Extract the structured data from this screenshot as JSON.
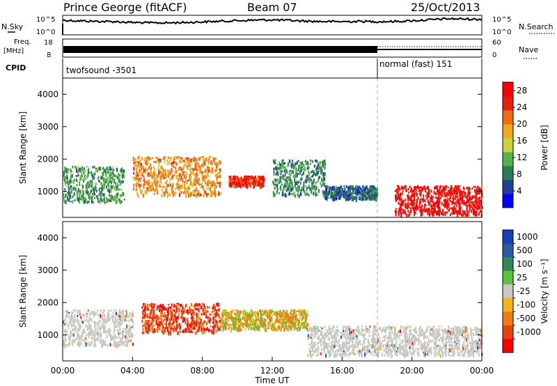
{
  "header": {
    "station": "Prince George (fitACF)",
    "beam": "Beam 07",
    "date": "25/Oct/2013"
  },
  "noise_panel": {
    "left_label": "N.Sky",
    "right_label": "N.Search",
    "left_ticks": [
      "10^5",
      "10^0"
    ],
    "right_ticks": [
      "10^5",
      "10^0"
    ]
  },
  "freq_panel": {
    "left_label_1": "Freq.",
    "left_label_2": "[MHz]",
    "left_ticks": [
      "18",
      "8"
    ],
    "right_label": "Nave",
    "right_ticks": [
      "60",
      "0"
    ]
  },
  "cpid": {
    "label": "CPID",
    "segments": [
      {
        "name": "twofsound -3501",
        "start_hour": 0,
        "end_hour": 18
      },
      {
        "name": "normal (fast) 151",
        "start_hour": 18,
        "end_hour": 24
      }
    ]
  },
  "colors": {
    "power_scale": [
      "#0000ff",
      "#1e3f9a",
      "#2f7a56",
      "#53b24a",
      "#c8d23a",
      "#f3a81c",
      "#f26a12",
      "#e81f0a",
      "#ff0000"
    ],
    "velocity_scale": [
      "#1a3dbd",
      "#2c5aa0",
      "#2e8b57",
      "#5bc23a",
      "#c8c8c0",
      "#f3b31a",
      "#f07b12",
      "#e8420c",
      "#ff0000"
    ],
    "ground_scatter": "#c8c8c0"
  },
  "chart_data": [
    {
      "type": "heatmap",
      "name": "power",
      "ylabel": "Slant Range [km]",
      "xlim": [
        0,
        24
      ],
      "ylim": [
        200,
        4500
      ],
      "yticks": [
        1000,
        2000,
        3000,
        4000
      ],
      "colorbar": {
        "label": "Power [dB]",
        "ticks": [
          4,
          8,
          12,
          16,
          20,
          24,
          28
        ],
        "range": [
          0,
          30
        ]
      },
      "features": [
        {
          "x0": 0.0,
          "x1": 3.5,
          "y0": 700,
          "y1": 1800,
          "value": 10
        },
        {
          "x0": 4.0,
          "x1": 9.0,
          "y0": 900,
          "y1": 2100,
          "value": 20
        },
        {
          "x0": 9.5,
          "x1": 11.5,
          "y0": 1200,
          "y1": 1500,
          "value": 26
        },
        {
          "x0": 12.0,
          "x1": 15.0,
          "y0": 900,
          "y1": 2000,
          "value": 9
        },
        {
          "x0": 15.0,
          "x1": 18.0,
          "y0": 800,
          "y1": 1200,
          "value": 7
        },
        {
          "x0": 19.0,
          "x1": 24.0,
          "y0": 300,
          "y1": 1200,
          "value": 28
        }
      ]
    },
    {
      "type": "heatmap",
      "name": "velocity",
      "ylabel": "Slant Range [km]",
      "xlabel": "Time UT",
      "xlim": [
        0,
        24
      ],
      "ylim": [
        200,
        4500
      ],
      "yticks": [
        1000,
        2000,
        3000,
        4000
      ],
      "xtick_labels": [
        "00:00",
        "04:00",
        "08:00",
        "12:00",
        "16:00",
        "20:00",
        "00:00"
      ],
      "xticks": [
        0,
        4,
        8,
        12,
        16,
        20,
        24
      ],
      "colorbar": {
        "label": "Velocity [m s⁻¹]",
        "ticks": [
          1000,
          500,
          100,
          25,
          -25,
          -100,
          -500,
          -1000
        ]
      },
      "features": [
        {
          "x0": 0.0,
          "x1": 4.0,
          "y0": 700,
          "y1": 1800,
          "value": 0
        },
        {
          "x0": 4.5,
          "x1": 9.0,
          "y0": 1100,
          "y1": 2000,
          "value": -500
        },
        {
          "x0": 9.0,
          "x1": 14.0,
          "y0": 1200,
          "y1": 1800,
          "value": -100
        },
        {
          "x0": 14.0,
          "x1": 24.0,
          "y0": 400,
          "y1": 1300,
          "value": 0
        }
      ]
    }
  ]
}
